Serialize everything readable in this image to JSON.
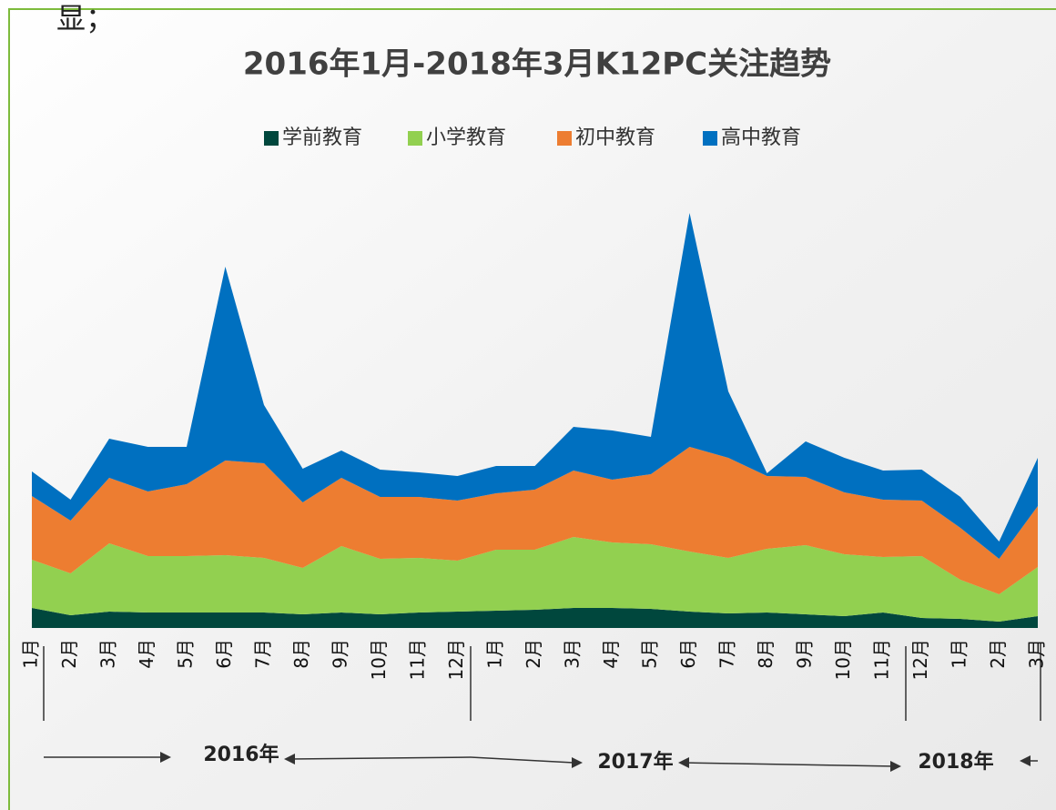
{
  "fragment": "显；",
  "chart_data": {
    "type": "stacked_area",
    "title": "2016年1月-2018年3月K12PC关注趋势",
    "categories": [
      "1月",
      "2月",
      "3月",
      "4月",
      "5月",
      "6月",
      "7月",
      "8月",
      "9月",
      "10月",
      "11月",
      "12月",
      "1月",
      "2月",
      "3月",
      "4月",
      "5月",
      "6月",
      "7月",
      "8月",
      "9月",
      "10月",
      "11月",
      "12月",
      "1月",
      "2月",
      "3月"
    ],
    "series": [
      {
        "name": "学前教育",
        "color": "#00473d",
        "values": [
          22,
          14,
          18,
          17,
          17,
          17,
          17,
          15,
          17,
          15,
          17,
          18,
          19,
          20,
          22,
          22,
          21,
          18,
          16,
          17,
          15,
          13,
          17,
          11,
          10,
          7,
          13
        ]
      },
      {
        "name": "小学教育",
        "color": "#92d050",
        "values": [
          53,
          46,
          75,
          62,
          62,
          63,
          60,
          51,
          73,
          61,
          60,
          56,
          67,
          66,
          78,
          72,
          71,
          66,
          61,
          70,
          76,
          68,
          61,
          68,
          43,
          30,
          54
        ]
      },
      {
        "name": "初中教育",
        "color": "#ed7d31",
        "values": [
          70,
          58,
          72,
          71,
          79,
          104,
          104,
          72,
          75,
          68,
          67,
          66,
          62,
          66,
          73,
          69,
          77,
          115,
          110,
          80,
          75,
          68,
          63,
          61,
          57,
          39,
          67
        ]
      },
      {
        "name": "高中教育",
        "color": "#0070c0",
        "values": [
          27,
          23,
          43,
          49,
          41,
          213,
          64,
          37,
          30,
          30,
          27,
          27,
          30,
          26,
          48,
          54,
          41,
          257,
          73,
          3,
          39,
          38,
          32,
          34,
          34,
          19,
          53
        ]
      }
    ],
    "ylim": [
      0,
      490
    ],
    "annotations": [
      "2016年",
      "2017年",
      "2018年"
    ]
  }
}
